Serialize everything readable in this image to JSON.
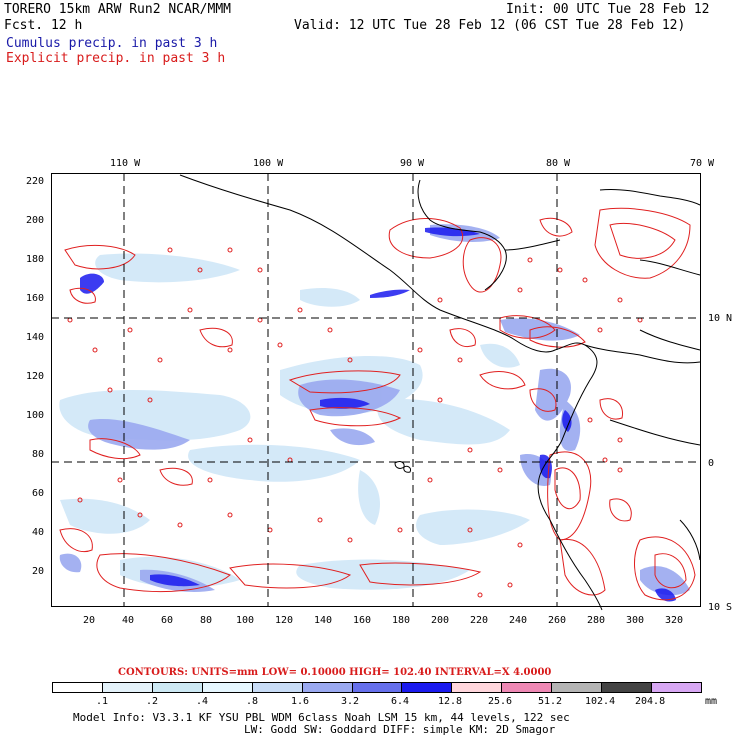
{
  "header": {
    "title": "TORERO  15km ARW   Run2    NCAR/MMM",
    "fcst": "Fcst.   12 h",
    "init": "Init: 00 UTC Tue 28 Feb 12",
    "valid": "Valid: 12 UTC Tue 28 Feb 12 (06 CST Tue 28 Feb 12)",
    "cumulus": "Cumulus precip. in past 3 h",
    "explicit": "Explicit precip. in past 3 h"
  },
  "map": {
    "lon_labels": [
      "110 W",
      "100 W",
      "90 W",
      "80 W",
      "70 W"
    ],
    "lat_labels": [
      "10 N",
      "0",
      "10 S"
    ],
    "y_ticks": [
      "220",
      "200",
      "180",
      "160",
      "140",
      "120",
      "100",
      "80",
      "60",
      "40",
      "20"
    ],
    "x_ticks": [
      "20",
      "40",
      "60",
      "80",
      "100",
      "120",
      "140",
      "160",
      "180",
      "200",
      "220",
      "240",
      "260",
      "280",
      "300",
      "320"
    ]
  },
  "contours": {
    "text": "CONTOURS:  UNITS=mm  LOW= 0.10000      HIGH= 102.40      INTERVAL=X  4.0000"
  },
  "legend": {
    "colors": [
      "#ffffff",
      "#e4f2fa",
      "#cde9f4",
      "#e6f7ff",
      "#c8dcf6",
      "#9aa9f0",
      "#6670ec",
      "#1a1aee",
      "#ffd6dc",
      "#ee88b4",
      "#b4b4b4",
      "#444444",
      "#d8a8f4"
    ],
    "labels": [
      ".1",
      ".2",
      ".4",
      ".8",
      "1.6",
      "3.2",
      "6.4",
      "12.8",
      "25.6",
      "51.2",
      "102.4",
      "204.8"
    ],
    "units": "mm"
  },
  "footer": {
    "line1": "Model Info: V3.3.1   KF    YSU PBL  WDM 6class  Noah LSM  15 km,   44 levels,  122 sec",
    "line2": "LW: Godd SW: Goddard DIFF: simple KM: 2D Smagor"
  }
}
